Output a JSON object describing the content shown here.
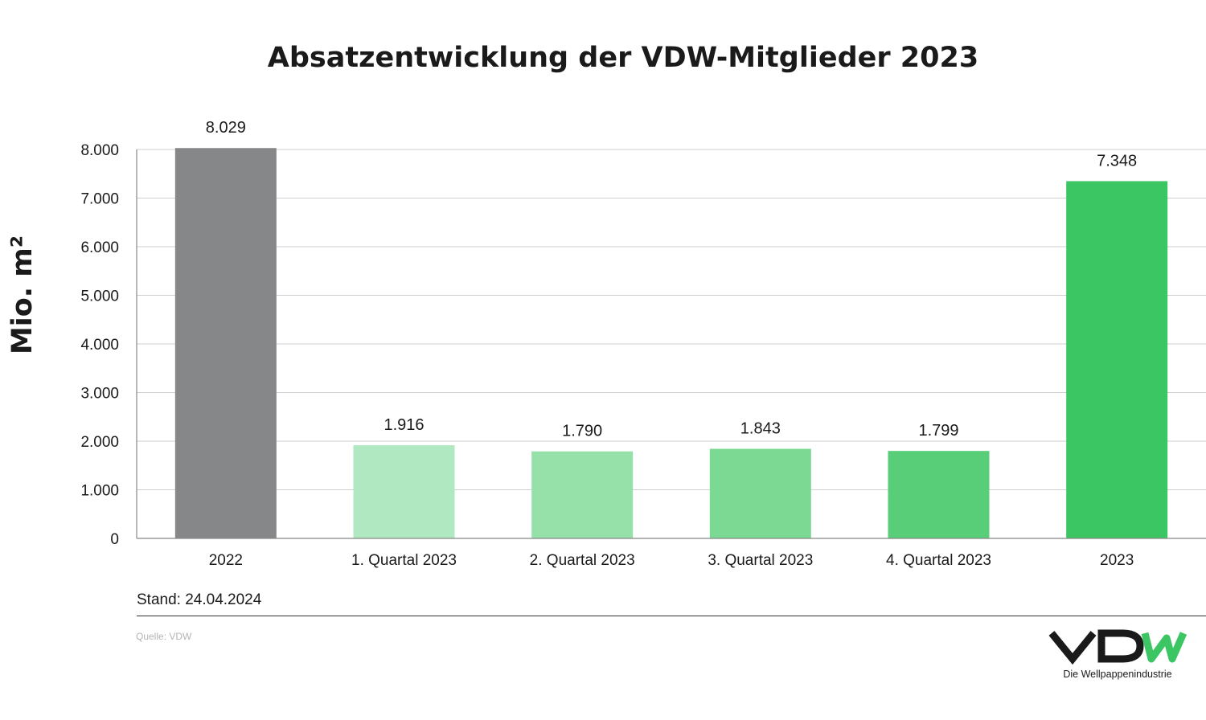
{
  "chart_data": {
    "type": "bar",
    "title": "Absatzentwicklung der VDW-Mitglieder 2023",
    "xlabel": "",
    "ylabel": "Mio. m²",
    "categories": [
      "2022",
      "1. Quartal 2023",
      "2. Quartal 2023",
      "3. Quartal 2023",
      "4. Quartal 2023",
      "2023"
    ],
    "values": [
      8029,
      1916,
      1790,
      1843,
      1799,
      7348
    ],
    "value_labels": [
      "8.029",
      "1.916",
      "1.790",
      "1.843",
      "1.799",
      "7.348"
    ],
    "bar_colors": [
      "#868788",
      "#b0e9c1",
      "#96e1a9",
      "#7bd993",
      "#58ce78",
      "#3cc663"
    ],
    "ylim": [
      0,
      8000
    ],
    "yticks": [
      0,
      1000,
      2000,
      3000,
      4000,
      5000,
      6000,
      7000,
      8000
    ],
    "ytick_labels": [
      "0",
      "1.000",
      "2.000",
      "3.000",
      "4.000",
      "5.000",
      "6.000",
      "7.000",
      "8.000"
    ],
    "grid": true,
    "legend": "none"
  },
  "note": "Stand: 24.04.2024",
  "source": "Quelle: VDW",
  "logo": {
    "text": "VDW",
    "tagline": "Die Wellpappenindustrie",
    "dark_color": "#1a1a1a",
    "accent_color": "#3cc663"
  }
}
